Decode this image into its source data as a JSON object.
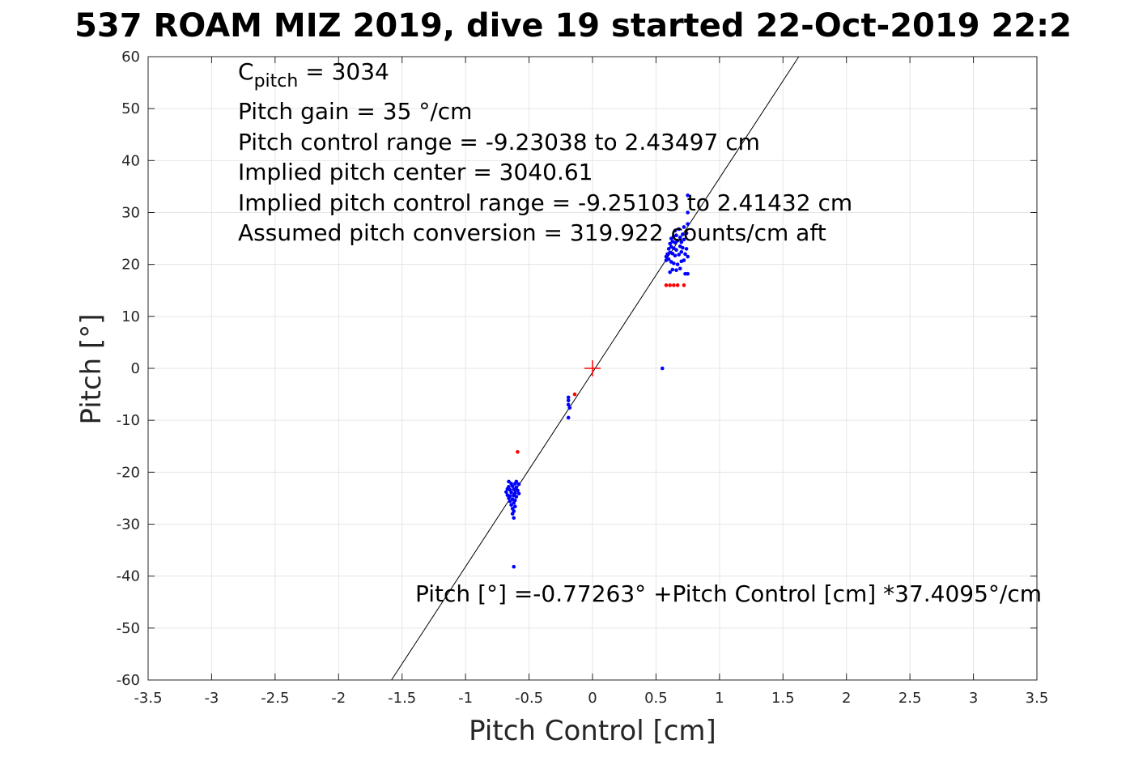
{
  "chart_data": {
    "type": "scatter",
    "title": "537 ROAM MIZ 2019, dive 19 started 22-Oct-2019 22:2",
    "xlabel": "Pitch Control [cm]",
    "ylabel": "Pitch [°]",
    "xlim": [
      -3.5,
      3.5
    ],
    "ylim": [
      -60,
      60
    ],
    "xticks": [
      -3.5,
      -3,
      -2.5,
      -2,
      -1.5,
      -1,
      -0.5,
      0,
      0.5,
      1,
      1.5,
      2,
      2.5,
      3,
      3.5
    ],
    "xtick_labels": [
      "-3.5",
      "-3",
      "-2.5",
      "-2",
      "-1.5",
      "-1",
      "-0.5",
      "0",
      "0.5",
      "1",
      "1.5",
      "2",
      "2.5",
      "3",
      "3.5"
    ],
    "yticks": [
      -60,
      -50,
      -40,
      -30,
      -20,
      -10,
      0,
      10,
      20,
      30,
      40,
      50,
      60
    ],
    "ytick_labels": [
      "-60",
      "-50",
      "-40",
      "-30",
      "-20",
      "-10",
      "0",
      "10",
      "20",
      "30",
      "40",
      "50",
      "60"
    ],
    "grid": true,
    "colors": {
      "blue": "#0000ff",
      "red": "#ff0000",
      "fit_line": "#000000",
      "grid": "#e6e6e6",
      "axes": "#262626"
    },
    "fit_line": {
      "intercept": -0.77263,
      "slope": 37.4095
    },
    "center_marker": {
      "x": 0,
      "y": 0,
      "color": "#ff0000"
    },
    "series": [
      {
        "color": "#0000ff",
        "points": [
          [
            -0.62,
            -38.2
          ],
          [
            -0.19,
            -5.6
          ],
          [
            -0.19,
            -6.2
          ],
          [
            -0.19,
            -7.0
          ],
          [
            -0.18,
            -7.6
          ],
          [
            -0.19,
            -9.5
          ],
          [
            -0.66,
            -21.8
          ],
          [
            -0.6,
            -21.8
          ],
          [
            -0.64,
            -22.2
          ],
          [
            -0.61,
            -22.2
          ],
          [
            -0.58,
            -22.3
          ],
          [
            -0.66,
            -22.8
          ],
          [
            -0.63,
            -22.7
          ],
          [
            -0.6,
            -22.9
          ],
          [
            -0.67,
            -23.2
          ],
          [
            -0.65,
            -23.4
          ],
          [
            -0.62,
            -23.3
          ],
          [
            -0.59,
            -23.5
          ],
          [
            -0.68,
            -23.8
          ],
          [
            -0.64,
            -23.9
          ],
          [
            -0.61,
            -24.0
          ],
          [
            -0.58,
            -24.1
          ],
          [
            -0.67,
            -24.4
          ],
          [
            -0.65,
            -24.6
          ],
          [
            -0.62,
            -24.5
          ],
          [
            -0.6,
            -24.7
          ],
          [
            -0.66,
            -25.0
          ],
          [
            -0.63,
            -25.2
          ],
          [
            -0.61,
            -25.4
          ],
          [
            -0.65,
            -25.6
          ],
          [
            -0.62,
            -25.9
          ],
          [
            -0.64,
            -26.3
          ],
          [
            -0.61,
            -26.6
          ],
          [
            -0.63,
            -27.0
          ],
          [
            -0.62,
            -27.5
          ],
          [
            -0.63,
            -28.0
          ],
          [
            -0.62,
            -28.8
          ],
          [
            0.55,
            0.0
          ],
          [
            0.58,
            20.8
          ],
          [
            0.61,
            18.5
          ],
          [
            0.63,
            19.0
          ],
          [
            0.66,
            18.9
          ],
          [
            0.69,
            19.2
          ],
          [
            0.73,
            18.2
          ],
          [
            0.75,
            18.2
          ],
          [
            0.58,
            21.5
          ],
          [
            0.6,
            21.0
          ],
          [
            0.62,
            20.5
          ],
          [
            0.64,
            20.2
          ],
          [
            0.67,
            20.0
          ],
          [
            0.7,
            20.6
          ],
          [
            0.72,
            20.8
          ],
          [
            0.59,
            22.0
          ],
          [
            0.61,
            22.3
          ],
          [
            0.63,
            22.1
          ],
          [
            0.65,
            21.7
          ],
          [
            0.68,
            21.9
          ],
          [
            0.7,
            22.4
          ],
          [
            0.73,
            22.0
          ],
          [
            0.75,
            21.5
          ],
          [
            0.6,
            23.0
          ],
          [
            0.62,
            23.4
          ],
          [
            0.64,
            23.1
          ],
          [
            0.66,
            22.8
          ],
          [
            0.69,
            23.5
          ],
          [
            0.71,
            23.2
          ],
          [
            0.74,
            23.0
          ],
          [
            0.61,
            24.0
          ],
          [
            0.63,
            24.4
          ],
          [
            0.65,
            24.2
          ],
          [
            0.67,
            24.6
          ],
          [
            0.7,
            24.3
          ],
          [
            0.72,
            24.8
          ],
          [
            0.62,
            25.0
          ],
          [
            0.64,
            25.4
          ],
          [
            0.66,
            25.6
          ],
          [
            0.69,
            25.2
          ],
          [
            0.71,
            25.8
          ],
          [
            0.74,
            26.0
          ],
          [
            0.65,
            26.5
          ],
          [
            0.68,
            26.8
          ],
          [
            0.72,
            27.2
          ],
          [
            0.75,
            27.8
          ],
          [
            0.75,
            30.0
          ],
          [
            0.75,
            33.3
          ]
        ]
      },
      {
        "color": "#ff0000",
        "points": [
          [
            -0.59,
            -16.1
          ],
          [
            -0.14,
            -5.0
          ],
          [
            0.58,
            16.0
          ],
          [
            0.61,
            16.0
          ],
          [
            0.64,
            16.0
          ],
          [
            0.67,
            16.0
          ],
          [
            0.72,
            16.0
          ]
        ]
      }
    ],
    "annotations": {
      "cpitch_main": "C",
      "cpitch_sub": "pitch",
      "cpitch_value": " = 3034",
      "lines": [
        "Pitch gain = 35 °/cm",
        "Pitch control range = -9.23038 to 2.43497 cm",
        "Implied pitch center = 3040.61",
        "Implied pitch control range = -9.25103 to 2.41432 cm",
        "Assumed pitch conversion = 319.922 counts/cm aft"
      ],
      "fit_equation": "Pitch [°] =-0.77263° +Pitch Control [cm] *37.4095°/cm"
    }
  }
}
